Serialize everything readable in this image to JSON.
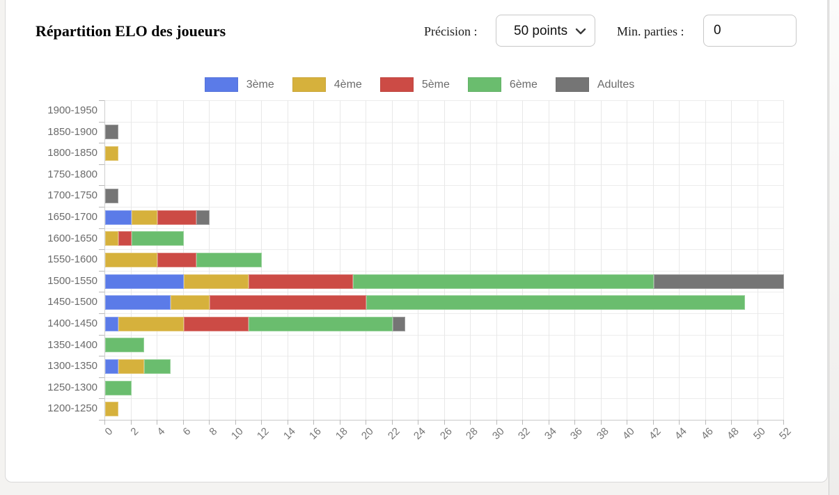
{
  "page": {
    "background": "#f4f3f1",
    "card_background": "#ffffff"
  },
  "header": {
    "title": "Répartition ELO des joueurs",
    "precision_label": "Précision :",
    "precision_value": "50 points",
    "min_parties_label": "Min. parties :",
    "min_parties_value": "0"
  },
  "chart_data": {
    "type": "bar",
    "orientation": "horizontal",
    "stacked": true,
    "title": "",
    "xlabel": "",
    "ylabel": "",
    "categories": [
      "1900-1950",
      "1850-1900",
      "1800-1850",
      "1750-1800",
      "1700-1750",
      "1650-1700",
      "1600-1650",
      "1550-1600",
      "1500-1550",
      "1450-1500",
      "1400-1450",
      "1350-1400",
      "1300-1350",
      "1250-1300",
      "1200-1250"
    ],
    "series": [
      {
        "name": "3ème",
        "color": "#5B7BE8",
        "values": [
          0,
          0,
          0,
          0,
          0,
          2,
          0,
          0,
          6,
          5,
          1,
          0,
          1,
          0,
          0
        ]
      },
      {
        "name": "4ème",
        "color": "#D6B13C",
        "values": [
          0,
          0,
          1,
          0,
          0,
          2,
          1,
          4,
          5,
          3,
          5,
          0,
          2,
          0,
          1
        ]
      },
      {
        "name": "5ème",
        "color": "#CC4B45",
        "values": [
          0,
          0,
          0,
          0,
          0,
          3,
          1,
          3,
          8,
          12,
          5,
          0,
          0,
          0,
          0
        ]
      },
      {
        "name": "6ème",
        "color": "#6ABD6E",
        "values": [
          0,
          0,
          0,
          0,
          0,
          0,
          4,
          5,
          23,
          29,
          11,
          3,
          2,
          2,
          0
        ]
      },
      {
        "name": "Adultes",
        "color": "#757575",
        "values": [
          0,
          1,
          0,
          0,
          1,
          1,
          0,
          0,
          10,
          0,
          1,
          0,
          0,
          0,
          0
        ]
      }
    ],
    "totals": [
      0,
      1,
      1,
      0,
      1,
      8,
      6,
      12,
      52,
      49,
      23,
      3,
      5,
      2,
      1
    ],
    "xlim": [
      0,
      52
    ],
    "x_tick_step": 2,
    "grid": true,
    "legend_position": "top",
    "axis_text_color": "#6b6b6b"
  }
}
